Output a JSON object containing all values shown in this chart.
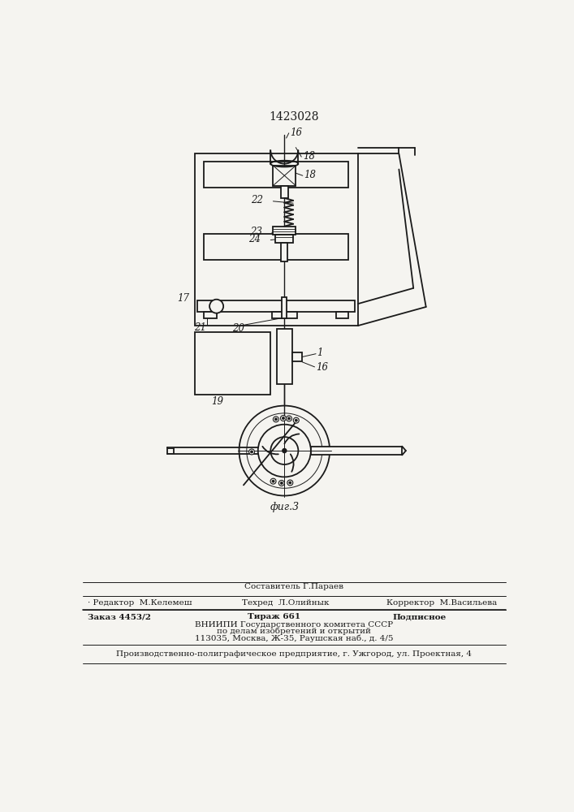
{
  "title": "1423028",
  "fig_label": "фиг.3",
  "bg_color": "#f5f4f0",
  "line_color": "#1a1a1a",
  "lw": 1.3,
  "tlw": 0.7,
  "footer": {
    "row0": "Составитель Г.Параев",
    "row1_l": "· Редактор  М.Келемеш",
    "row1_m": "Техред  Л.Олийнык",
    "row1_r": "Корректор  М.Васильева",
    "row2_l": "Заказ 4453/2",
    "row2_m": "Тираж 661",
    "row2_r": "Подписное",
    "row3": "ВНИИПИ Государственного комитета СССР",
    "row4": "по делам изобретений и открытий",
    "row5": "113035, Москва, Ж-35, Раушская наб., д. 4/5",
    "row6": "Производственно-полиграфическое предприятие, г. Ужгород, ул. Проектная, 4"
  }
}
